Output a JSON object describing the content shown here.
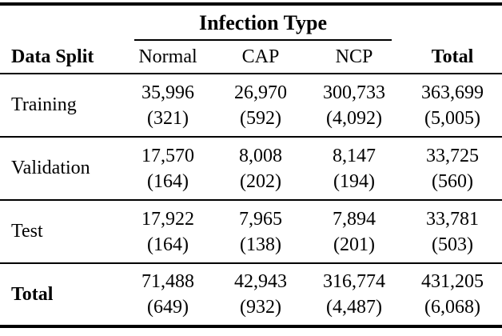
{
  "colors": {
    "background": "#ffffff",
    "text": "#000000",
    "rule": "#000000"
  },
  "table": {
    "group_header": "Infection Type",
    "columns": {
      "data_split": "Data Split",
      "normal": "Normal",
      "cap": "CAP",
      "ncp": "NCP",
      "total": "Total"
    },
    "rows": [
      {
        "label": "Training",
        "cells": [
          {
            "value": "35,996",
            "count": "(321)"
          },
          {
            "value": "26,970",
            "count": "(592)"
          },
          {
            "value": "300,733",
            "count": "(4,092)"
          },
          {
            "value": "363,699",
            "count": "(5,005)"
          }
        ]
      },
      {
        "label": "Validation",
        "cells": [
          {
            "value": "17,570",
            "count": "(164)"
          },
          {
            "value": "8,008",
            "count": "(202)"
          },
          {
            "value": "8,147",
            "count": "(194)"
          },
          {
            "value": "33,725",
            "count": "(560)"
          }
        ]
      },
      {
        "label": "Test",
        "cells": [
          {
            "value": "17,922",
            "count": "(164)"
          },
          {
            "value": "7,965",
            "count": "(138)"
          },
          {
            "value": "7,894",
            "count": "(201)"
          },
          {
            "value": "33,781",
            "count": "(503)"
          }
        ]
      },
      {
        "label": "Total",
        "cells": [
          {
            "value": "71,488",
            "count": "(649)"
          },
          {
            "value": "42,943",
            "count": "(932)"
          },
          {
            "value": "316,774",
            "count": "(4,487)"
          },
          {
            "value": "431,205",
            "count": "(6,068)"
          }
        ]
      }
    ]
  }
}
